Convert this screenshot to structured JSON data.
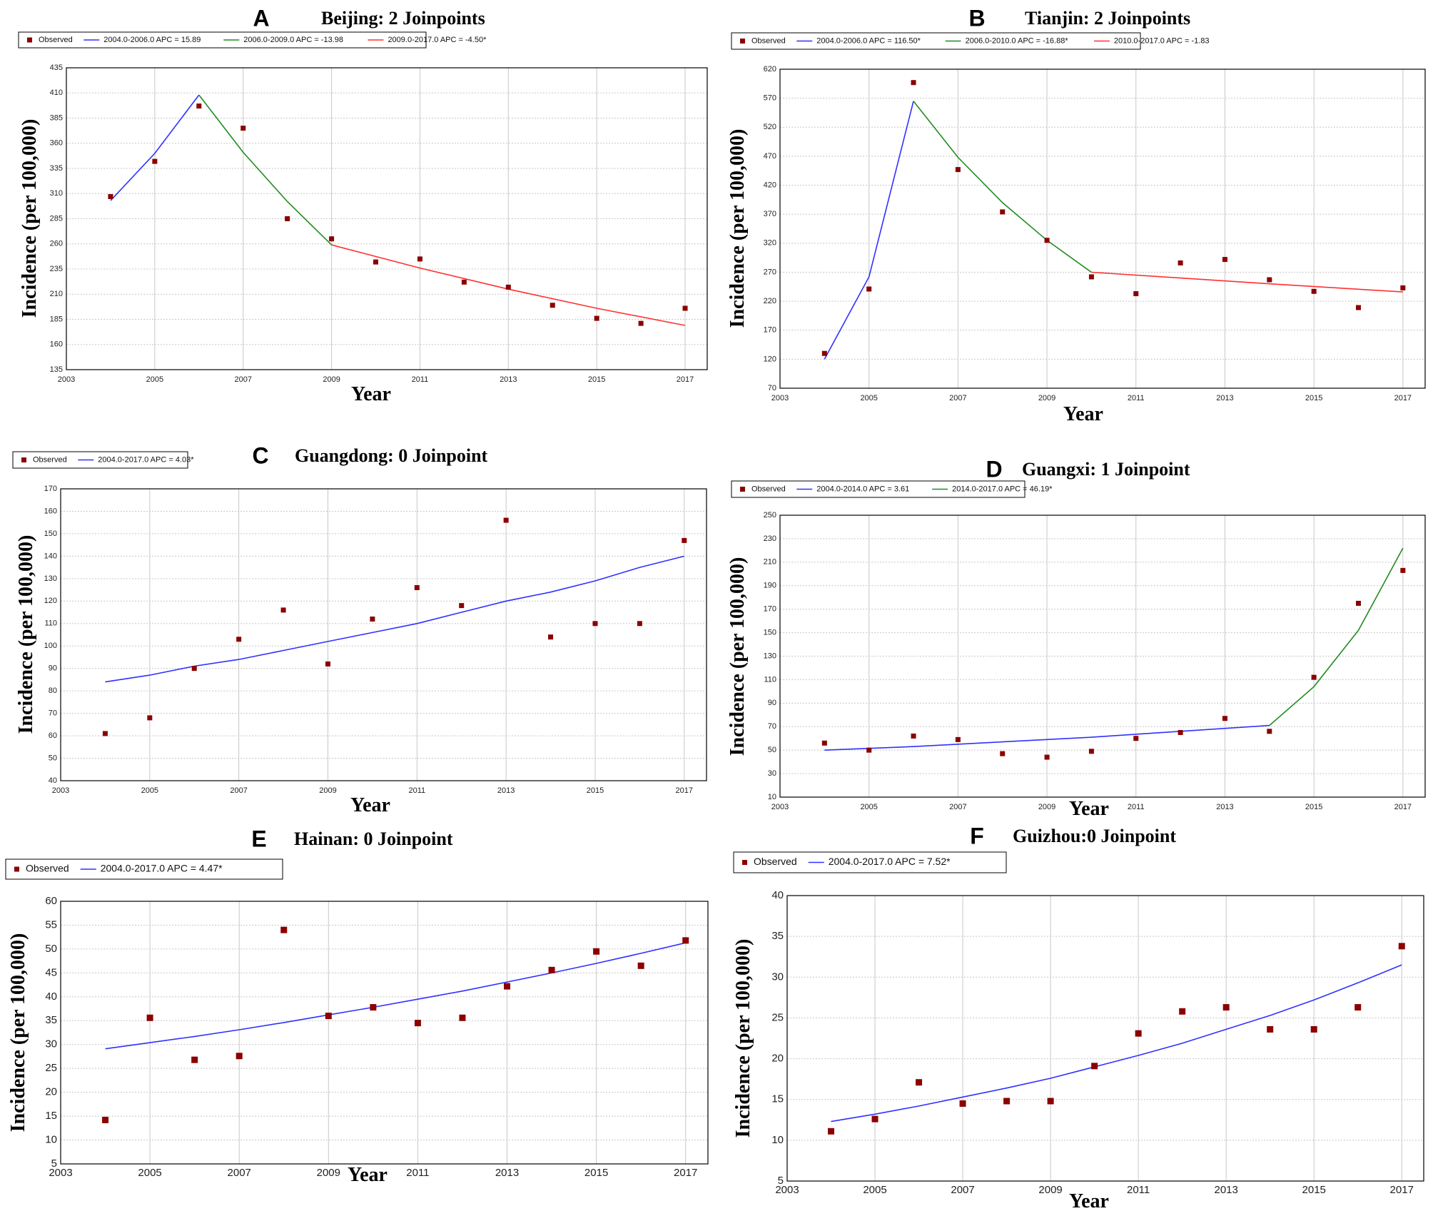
{
  "colors": {
    "observed": "#8b0000",
    "blue": "#3030ff",
    "green": "#228b22",
    "red": "#ff3030",
    "grid": "#c8c8c8",
    "frame": "#000000"
  },
  "chart_data": [
    {
      "type": "line",
      "panel": "A",
      "title": "Beijing: 2 Joinpoints",
      "xlabel": "Year",
      "ylabel": "Incidence (per 100,000)",
      "xlim": [
        2003,
        2017.5
      ],
      "ylim": [
        135,
        435
      ],
      "xticks": [
        2003,
        2005,
        2007,
        2009,
        2011,
        2013,
        2015,
        2017
      ],
      "yticks": [
        135,
        160,
        185,
        210,
        235,
        260,
        285,
        310,
        335,
        360,
        385,
        410,
        435
      ],
      "observed": {
        "name": "Observed",
        "x": [
          2004,
          2005,
          2006,
          2007,
          2008,
          2009,
          2010,
          2011,
          2012,
          2013,
          2014,
          2015,
          2016,
          2017
        ],
        "y": [
          307,
          342,
          397,
          375,
          285,
          265,
          242,
          245,
          222,
          217,
          199,
          186,
          181,
          196
        ]
      },
      "series": [
        {
          "name": "2004.0-2006.0 APC = 15.89",
          "color": "blue",
          "x": [
            2004,
            2005,
            2006
          ],
          "y": [
            303,
            350,
            408
          ]
        },
        {
          "name": "2006.0-2009.0 APC = -13.98",
          "color": "green",
          "x": [
            2006,
            2007,
            2008,
            2009
          ],
          "y": [
            408,
            351,
            302,
            259
          ]
        },
        {
          "name": "2009.0-2017.0 APC = -4.50*",
          "color": "red",
          "x": [
            2009,
            2011,
            2013,
            2015,
            2017
          ],
          "y": [
            259,
            236,
            215,
            196,
            179
          ]
        }
      ]
    },
    {
      "type": "line",
      "panel": "B",
      "title": "Tianjin: 2 Joinpoints",
      "xlabel": "Year",
      "ylabel": "Incidence (per 100,000)",
      "xlim": [
        2003,
        2017.5
      ],
      "ylim": [
        70,
        620
      ],
      "xticks": [
        2003,
        2005,
        2007,
        2009,
        2011,
        2013,
        2015,
        2017
      ],
      "yticks": [
        70,
        120,
        170,
        220,
        270,
        320,
        370,
        420,
        470,
        520,
        570,
        620
      ],
      "observed": {
        "name": "Observed",
        "x": [
          2004,
          2005,
          2006,
          2007,
          2008,
          2009,
          2010,
          2011,
          2012,
          2013,
          2014,
          2015,
          2016,
          2017
        ],
        "y": [
          130,
          241,
          597,
          447,
          374,
          325,
          262,
          233,
          286,
          292,
          257,
          237,
          209,
          243
        ]
      },
      "series": [
        {
          "name": "2004.0-2006.0 APC = 116.50*",
          "color": "blue",
          "x": [
            2004,
            2005,
            2006
          ],
          "y": [
            120,
            262,
            565
          ]
        },
        {
          "name": "2006.0-2010.0 APC = -16.88*",
          "color": "green",
          "x": [
            2006,
            2007,
            2008,
            2009,
            2010
          ],
          "y": [
            565,
            468,
            390,
            325,
            270
          ]
        },
        {
          "name": "2010.0-2017.0 APC = -1.83",
          "color": "red",
          "x": [
            2010,
            2012,
            2014,
            2017
          ],
          "y": [
            270,
            260,
            250,
            236
          ]
        }
      ]
    },
    {
      "type": "line",
      "panel": "C",
      "title": "Guangdong: 0 Joinpoint",
      "xlabel": "Year",
      "ylabel": "Incidence (per 100,000)",
      "xlim": [
        2003,
        2017.5
      ],
      "ylim": [
        40,
        170
      ],
      "xticks": [
        2003,
        2005,
        2007,
        2009,
        2011,
        2013,
        2015,
        2017
      ],
      "yticks": [
        40,
        50,
        60,
        70,
        80,
        90,
        100,
        110,
        120,
        130,
        140,
        150,
        160,
        170
      ],
      "observed": {
        "name": "Observed",
        "x": [
          2004,
          2005,
          2006,
          2007,
          2008,
          2009,
          2010,
          2011,
          2012,
          2013,
          2014,
          2015,
          2016,
          2017
        ],
        "y": [
          61,
          68,
          90,
          103,
          116,
          92,
          112,
          126,
          118,
          156,
          104,
          110,
          110,
          147
        ]
      },
      "series": [
        {
          "name": "2004.0-2017.0 APC = 4.03*",
          "color": "blue",
          "x": [
            2004,
            2005,
            2006,
            2007,
            2008,
            2009,
            2010,
            2011,
            2012,
            2013,
            2014,
            2015,
            2016,
            2017
          ],
          "y": [
            84,
            87,
            91,
            94,
            98,
            102,
            106,
            110,
            115,
            120,
            124,
            129,
            135,
            140
          ]
        }
      ]
    },
    {
      "type": "line",
      "panel": "D",
      "title": "Guangxi: 1 Joinpoint",
      "xlabel": "Year",
      "ylabel": "Incidence (per 100,000)",
      "xlim": [
        2003,
        2017.5
      ],
      "ylim": [
        10,
        250
      ],
      "xticks": [
        2003,
        2005,
        2007,
        2009,
        2011,
        2013,
        2015,
        2017
      ],
      "yticks": [
        10,
        30,
        50,
        70,
        90,
        110,
        130,
        150,
        170,
        190,
        210,
        230,
        250
      ],
      "observed": {
        "name": "Observed",
        "x": [
          2004,
          2005,
          2006,
          2007,
          2008,
          2009,
          2010,
          2011,
          2012,
          2013,
          2014,
          2015,
          2016,
          2017
        ],
        "y": [
          56,
          50,
          62,
          59,
          47,
          44,
          49,
          60,
          65,
          77,
          66,
          112,
          175,
          203
        ]
      },
      "series": [
        {
          "name": "2004.0-2014.0 APC = 3.61",
          "color": "blue",
          "x": [
            2004,
            2006,
            2008,
            2010,
            2012,
            2014
          ],
          "y": [
            50,
            53,
            57,
            61,
            66,
            71
          ]
        },
        {
          "name": "2014.0-2017.0 APC = 46.19*",
          "color": "green",
          "x": [
            2014,
            2015,
            2016,
            2017
          ],
          "y": [
            71,
            104,
            152,
            222
          ]
        }
      ]
    },
    {
      "type": "line",
      "panel": "E",
      "title": "Hainan: 0 Joinpoint",
      "xlabel": "Year",
      "ylabel": "Incidence (per 100,000)",
      "xlim": [
        2003,
        2017.5
      ],
      "ylim": [
        5,
        60
      ],
      "xticks": [
        2003,
        2005,
        2007,
        2009,
        2011,
        2013,
        2015,
        2017
      ],
      "yticks": [
        5,
        10,
        15,
        20,
        25,
        30,
        35,
        40,
        45,
        50,
        55,
        60
      ],
      "observed": {
        "name": "Observed",
        "x": [
          2004,
          2005,
          2006,
          2007,
          2008,
          2009,
          2010,
          2011,
          2012,
          2013,
          2014,
          2015,
          2016,
          2017
        ],
        "y": [
          14.2,
          35.6,
          26.8,
          27.6,
          54.0,
          36.0,
          37.8,
          34.5,
          35.6,
          42.2,
          45.6,
          49.5,
          46.5,
          51.8
        ]
      },
      "series": [
        {
          "name": "2004.0-2017.0 APC = 4.47*",
          "color": "blue",
          "x": [
            2004,
            2005,
            2006,
            2007,
            2008,
            2009,
            2010,
            2011,
            2012,
            2013,
            2014,
            2015,
            2016,
            2017
          ],
          "y": [
            29.1,
            30.4,
            31.7,
            33.1,
            34.6,
            36.2,
            37.8,
            39.5,
            41.2,
            43.1,
            45.0,
            47.0,
            49.1,
            51.3
          ]
        }
      ]
    },
    {
      "type": "line",
      "panel": "F",
      "title": "Guizhou:0 Joinpoint",
      "xlabel": "Year",
      "ylabel": "Incidence (per 100,000)",
      "xlim": [
        2003,
        2017.5
      ],
      "ylim": [
        5,
        40
      ],
      "xticks": [
        2003,
        2005,
        2007,
        2009,
        2011,
        2013,
        2015,
        2017
      ],
      "yticks": [
        5,
        10,
        15,
        20,
        25,
        30,
        35,
        40
      ],
      "observed": {
        "name": "Observed",
        "x": [
          2004,
          2005,
          2006,
          2007,
          2008,
          2009,
          2010,
          2011,
          2012,
          2013,
          2014,
          2015,
          2016,
          2017
        ],
        "y": [
          11.1,
          12.6,
          17.1,
          14.5,
          14.8,
          14.8,
          19.1,
          23.1,
          25.8,
          26.3,
          23.6,
          23.6,
          26.3,
          33.8
        ]
      },
      "series": [
        {
          "name": "2004.0-2017.0 APC = 7.52*",
          "color": "blue",
          "x": [
            2004,
            2005,
            2006,
            2007,
            2008,
            2009,
            2010,
            2011,
            2012,
            2013,
            2014,
            2015,
            2016,
            2017
          ],
          "y": [
            12.3,
            13.2,
            14.2,
            15.3,
            16.4,
            17.6,
            19.0,
            20.4,
            21.9,
            23.6,
            25.3,
            27.2,
            29.3,
            31.5
          ]
        }
      ]
    }
  ]
}
